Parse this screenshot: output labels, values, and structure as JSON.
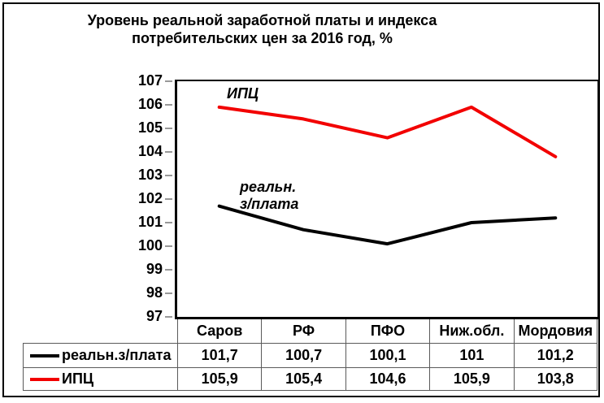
{
  "title": {
    "line1": "Уровень реальной заработной платы и индекса",
    "line2": "потребительских цен за 2016 год, %"
  },
  "chart_data": {
    "type": "line",
    "title": "Уровень реальной заработной платы и индекса потребительских цен за 2016 год, %",
    "categories": [
      "Саров",
      "РФ",
      "ПФО",
      "Ниж.обл.",
      "Мордовия"
    ],
    "series": [
      {
        "name": "реальн.з/плата",
        "color": "#000000",
        "values": [
          101.7,
          100.7,
          100.1,
          101,
          101.2
        ],
        "display_values": [
          "101,7",
          "100,7",
          "100,1",
          "101",
          "101,2"
        ]
      },
      {
        "name": "ИПЦ",
        "color": "#f20000",
        "values": [
          105.9,
          105.4,
          104.6,
          105.9,
          103.8
        ],
        "display_values": [
          "105,9",
          "105,4",
          "104,6",
          "105,9",
          "103,8"
        ]
      }
    ],
    "ylim": [
      97,
      107
    ],
    "yticks": [
      107,
      106,
      105,
      104,
      103,
      102,
      101,
      100,
      99,
      98,
      97
    ],
    "grid": false,
    "legend_position": "table-left-column",
    "annotations": [
      {
        "series": "ИПЦ",
        "lines": [
          "ИПЦ"
        ]
      },
      {
        "series": "реальн.з/плата",
        "lines": [
          "реальн.",
          "з/плата"
        ]
      }
    ]
  }
}
